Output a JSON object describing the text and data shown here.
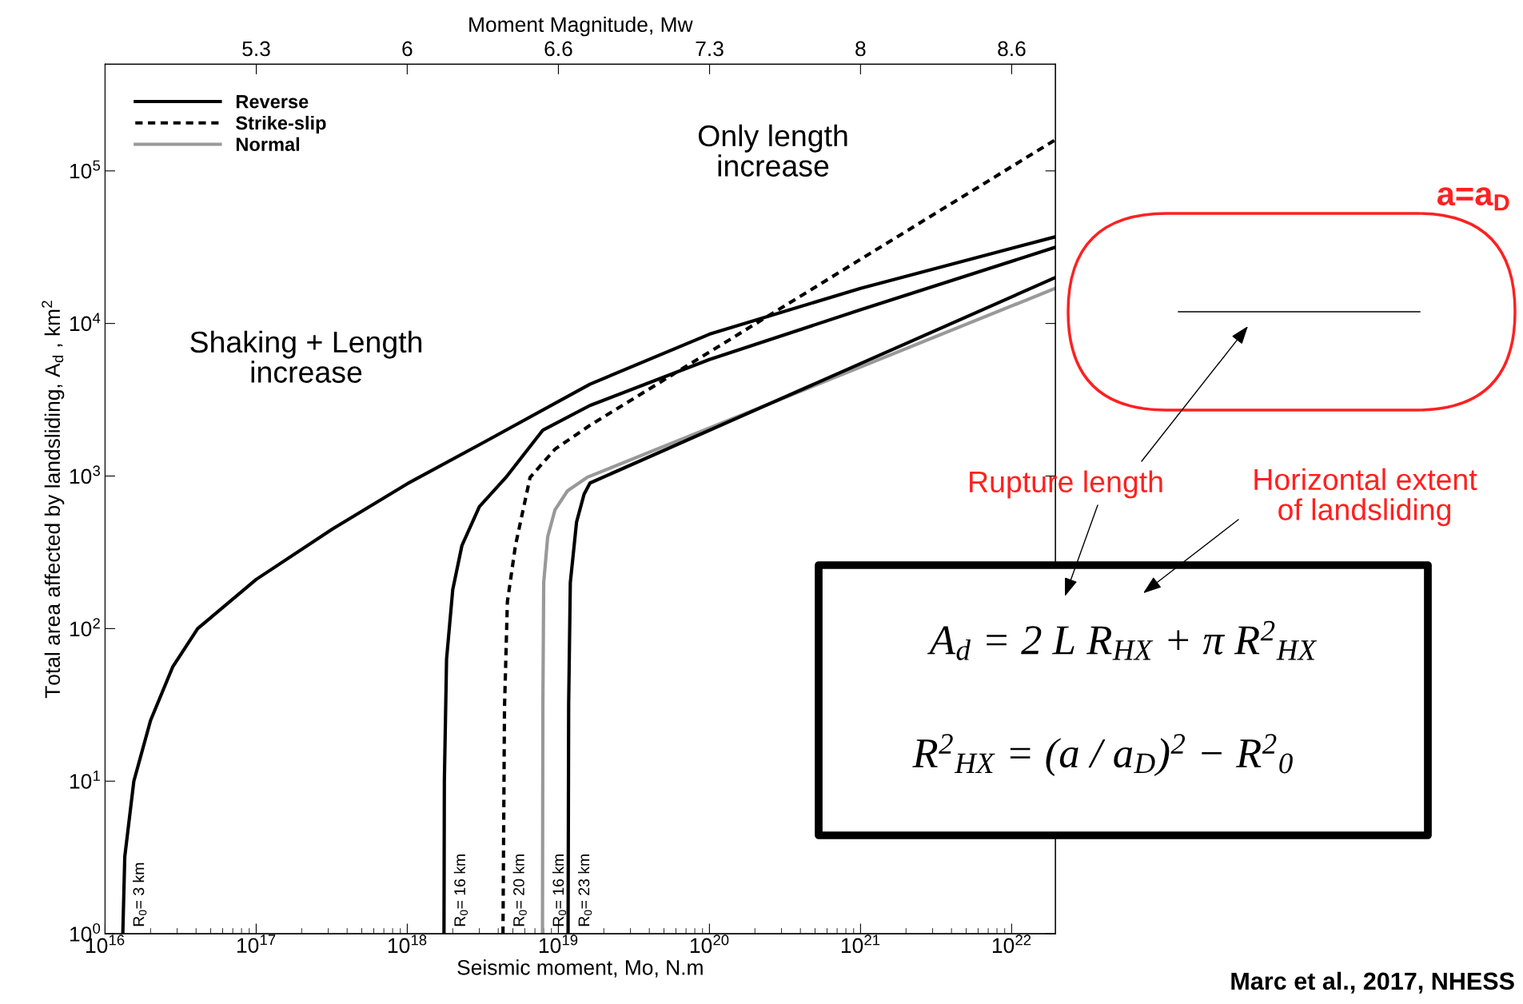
{
  "chart_data": {
    "type": "line",
    "xlabel": "Seismic moment, Mo, N.m",
    "ylabel": "Total area affected by landsliding, A$_{d}$ , km$^{2}$",
    "x2label": "Moment Magnitude, Mw",
    "log": "xy",
    "xlim": [
      1e+16,
      1.95e+22
    ],
    "ylim": [
      1,
      500000
    ],
    "xticks": [
      {
        "value": 1e+16,
        "label": "10$^{16}$"
      },
      {
        "value": 1e+17,
        "label": "10$^{17}$"
      },
      {
        "value": 1e+18,
        "label": "10$^{18}$"
      },
      {
        "value": 1e+19,
        "label": "10$^{19}$"
      },
      {
        "value": 1e+20,
        "label": "10$^{20}$"
      },
      {
        "value": 1e+21,
        "label": "10$^{21}$"
      },
      {
        "value": 1e+22,
        "label": "10$^{22}$"
      }
    ],
    "yticks": [
      {
        "value": 1,
        "label": "10$^{0}$"
      },
      {
        "value": 10,
        "label": "10$^{1}$"
      },
      {
        "value": 100,
        "label": "10$^{2}$"
      },
      {
        "value": 1000,
        "label": "10$^{3}$"
      },
      {
        "value": 10000,
        "label": "10$^{4}$"
      },
      {
        "value": 100000,
        "label": "10$^{5}$"
      }
    ],
    "x2lim": [
      4.6,
      8.793
    ],
    "x2ticks": [
      {
        "value": 5.267,
        "label": "5.3"
      },
      {
        "value": 5.933,
        "label": "6"
      },
      6.6,
      {
        "value": 7.267,
        "label": "7.3"
      },
      {
        "value": 7.933,
        "label": "8"
      },
      8.6
    ],
    "legend": "top left",
    "series": [
      {
        "name": "Reverse",
        "color": "#000000",
        "line_style": "solid",
        "x": [
          1.31e+16,
          1.35e+16,
          1.55e+16,
          2e+16,
          2.8e+16,
          4.1e+16,
          1e+17,
          3.2e+17,
          1e+18,
          3.2e+18,
          1.62e+19,
          1e+20,
          1e+21,
          1.95e+22
        ],
        "values": [
          1,
          3.2,
          10,
          25,
          56,
          100,
          210,
          450,
          890,
          1660,
          4000,
          8500,
          17000,
          37000
        ]
      },
      {
        "color": "#000000",
        "line_style": "solid",
        "x": [
          1.75e+18,
          1.76e+18,
          1.82e+18,
          2e+18,
          2.3e+18,
          3e+18,
          4.5e+18,
          7.9e+18,
          1.62e+19,
          1e+20,
          1e+21,
          1.95e+22
        ],
        "values": [
          1,
          10,
          63,
          180,
          350,
          630,
          980,
          2000,
          2900,
          5800,
          12300,
          31600
        ]
      },
      {
        "name": "Strike-slip",
        "color": "#000000",
        "line_style": "dashed",
        "x": [
          4.3e+18,
          4.4e+18,
          4.6e+18,
          5.2e+18,
          6.5e+18,
          9.5e+18,
          1.62e+19,
          1.95e+22
        ],
        "values": [
          1,
          30,
          150,
          350,
          980,
          1500,
          2150,
          160000
        ]
      },
      {
        "name": "Normal",
        "color": "#999999",
        "line_style": "solid",
        "x": [
          7.85e+18,
          7.9e+18,
          8e+18,
          8.5e+18,
          9.5e+18,
          1.15e+19,
          1.55e+19,
          1.95e+22
        ],
        "values": [
          1,
          32,
          200,
          400,
          600,
          800,
          980,
          17000
        ]
      },
      {
        "color": "#000000",
        "line_style": "solid",
        "x": [
          1.16e+19,
          1.17e+19,
          1.2e+19,
          1.32e+19,
          1.48e+19,
          1.62e+19,
          1.95e+22
        ],
        "values": [
          1,
          32,
          200,
          500,
          760,
          900,
          20000
        ]
      }
    ],
    "annotations": [
      "Shaking + Length\nincrease",
      "Only length\nincrease",
      "a=a$_{D}$",
      "Rupture length",
      "Horizontal extent\nof landsliding",
      "A$_{d}$ = 2 L R$_{HX}$ + π R$^{2}$$_{HX}$",
      "R$^{2}$$_{HX}$ = (a / a$_{D}$)$^{2}$ − R$^{2}$$_{0}$",
      "Marc et al., 2017, NHESS",
      {
        "text": "R$_{0}$= 3 km",
        "x": 1.31e+16,
        "y": 1
      },
      {
        "text": "R$_{0}$= 16 km",
        "x": 1.75e+18,
        "y": 1
      },
      {
        "text": "R$_{0}$= 20 km",
        "x": 4.3e+18,
        "y": 1
      },
      {
        "text": "R$_{0}$= 16 km",
        "x": 7.85e+18,
        "y": 1
      },
      {
        "text": "R$_{0}$= 23 km",
        "x": 1.16e+19,
        "y": 1
      }
    ]
  }
}
